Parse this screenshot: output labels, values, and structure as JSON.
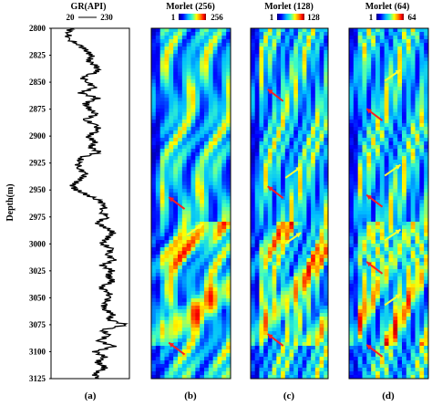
{
  "y_axis": {
    "label": "Depth(m)",
    "ticks": [
      "2800",
      "2825",
      "2850",
      "2875",
      "2900",
      "2925",
      "2950",
      "2975",
      "3000",
      "3025",
      "3050",
      "3075",
      "3100",
      "3125"
    ],
    "range": [
      2800,
      3125
    ]
  },
  "panels": [
    {
      "id": "a",
      "label": "(a)",
      "title": "GR(API)",
      "scale_min": "20",
      "scale_max": "230",
      "kind": "log"
    },
    {
      "id": "b",
      "label": "(b)",
      "title": "Morlet (256)",
      "scale_min": "1",
      "scale_max": "256",
      "kind": "scalogram",
      "freq": 4
    },
    {
      "id": "c",
      "label": "(c)",
      "title": "Morlet (128)",
      "scale_min": "1",
      "scale_max": "128",
      "kind": "scalogram",
      "freq": 7
    },
    {
      "id": "d",
      "label": "(d)",
      "title": "Morlet (64)",
      "scale_min": "1",
      "scale_max": "64",
      "kind": "scalogram",
      "freq": 11
    }
  ],
  "colormap": [
    "#00007f",
    "#0000ff",
    "#00bfff",
    "#40ffbf",
    "#ffff00",
    "#ff8000",
    "#ff0000",
    "#7f0000"
  ],
  "arrows": {
    "red_color": "#ff2020",
    "yellow_color": "#ffff30",
    "b": [
      {
        "depth": 2960,
        "color": "red"
      },
      {
        "depth": 2985,
        "color": "yellow"
      },
      {
        "depth": 3095,
        "color": "red"
      }
    ],
    "c": [
      {
        "depth": 2860,
        "color": "red"
      },
      {
        "depth": 2932,
        "color": "yellow"
      },
      {
        "depth": 2950,
        "color": "red"
      },
      {
        "depth": 2993,
        "color": "yellow"
      },
      {
        "depth": 3087,
        "color": "red"
      }
    ],
    "d": [
      {
        "depth": 2842,
        "color": "yellow"
      },
      {
        "depth": 2878,
        "color": "red"
      },
      {
        "depth": 2930,
        "color": "yellow"
      },
      {
        "depth": 2958,
        "color": "red"
      },
      {
        "depth": 2990,
        "color": "yellow"
      },
      {
        "depth": 3020,
        "color": "red"
      },
      {
        "depth": 3050,
        "color": "yellow"
      },
      {
        "depth": 3097,
        "color": "red"
      }
    ]
  },
  "gr_log": {
    "depth": [
      2800,
      2805,
      2810,
      2815,
      2820,
      2825,
      2830,
      2835,
      2840,
      2845,
      2850,
      2855,
      2860,
      2865,
      2870,
      2875,
      2880,
      2885,
      2890,
      2895,
      2900,
      2905,
      2910,
      2915,
      2920,
      2925,
      2930,
      2935,
      2940,
      2945,
      2950,
      2955,
      2960,
      2965,
      2970,
      2975,
      2980,
      2985,
      2990,
      2995,
      3000,
      3005,
      3010,
      3015,
      3020,
      3025,
      3030,
      3035,
      3040,
      3045,
      3050,
      3055,
      3060,
      3065,
      3070,
      3075,
      3080,
      3085,
      3090,
      3095,
      3100,
      3105,
      3110,
      3115,
      3120,
      3125
    ],
    "value": [
      70,
      65,
      60,
      95,
      110,
      130,
      120,
      140,
      150,
      100,
      120,
      135,
      100,
      145,
      110,
      125,
      140,
      110,
      140,
      150,
      115,
      140,
      125,
      150,
      100,
      90,
      95,
      110,
      100,
      75,
      85,
      120,
      150,
      170,
      150,
      180,
      140,
      170,
      190,
      170,
      160,
      185,
      175,
      190,
      160,
      185,
      175,
      190,
      150,
      180,
      175,
      170,
      160,
      190,
      175,
      225,
      160,
      175,
      150,
      190,
      140,
      165,
      145,
      170,
      135,
      150
    ]
  }
}
